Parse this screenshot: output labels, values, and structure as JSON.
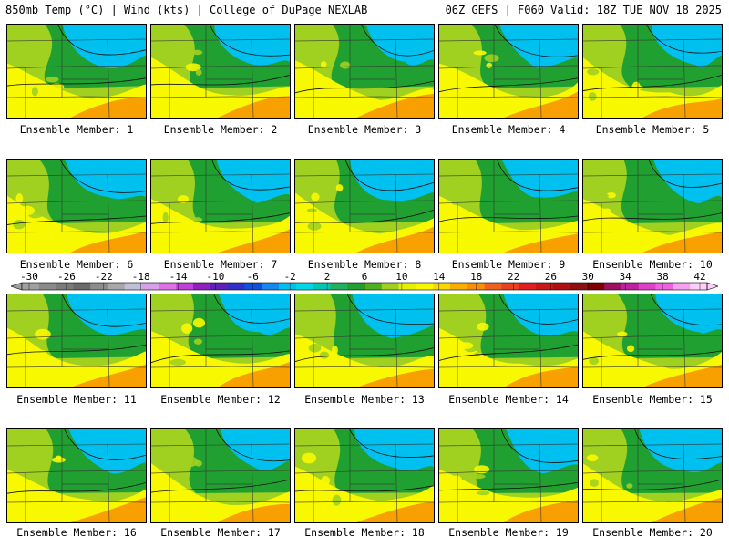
{
  "header": {
    "left": "850mb Temp (°C) | Wind (kts) | College of DuPage NEXLAB",
    "right": "06Z GEFS | F060 Valid: 18Z TUE NOV 18 2025"
  },
  "panels": [
    {
      "label": "Ensemble Member: 1"
    },
    {
      "label": "Ensemble Member: 2"
    },
    {
      "label": "Ensemble Member: 3"
    },
    {
      "label": "Ensemble Member: 4"
    },
    {
      "label": "Ensemble Member: 5"
    },
    {
      "label": "Ensemble Member: 6"
    },
    {
      "label": "Ensemble Member: 7"
    },
    {
      "label": "Ensemble Member: 8"
    },
    {
      "label": "Ensemble Member: 9"
    },
    {
      "label": "Ensemble Member: 10"
    },
    {
      "label": "Ensemble Member: 11"
    },
    {
      "label": "Ensemble Member: 12"
    },
    {
      "label": "Ensemble Member: 13"
    },
    {
      "label": "Ensemble Member: 14"
    },
    {
      "label": "Ensemble Member: 15"
    },
    {
      "label": "Ensemble Member: 16"
    },
    {
      "label": "Ensemble Member: 17"
    },
    {
      "label": "Ensemble Member: 18"
    },
    {
      "label": "Ensemble Member: 19"
    },
    {
      "label": "Ensemble Member: 20"
    }
  ],
  "colorbar": {
    "labels": [
      "-30",
      "-26",
      "-22",
      "-18",
      "-14",
      "-10",
      "-6",
      "-2",
      "2",
      "6",
      "10",
      "14",
      "18",
      "22",
      "26",
      "30",
      "34",
      "38",
      "42"
    ],
    "colors": [
      "#a0a0a0",
      "#8a8a8a",
      "#7a7a7a",
      "#6a6a6a",
      "#8c8c8c",
      "#a8a8a8",
      "#c0c0d8",
      "#d8a0e8",
      "#e070e8",
      "#c040d8",
      "#9020c0",
      "#6020b8",
      "#3030c8",
      "#1050e0",
      "#1488f0",
      "#00c0f0",
      "#00d8e8",
      "#00c8b0",
      "#20b060",
      "#20a030",
      "#50b020",
      "#a0d020",
      "#e8f000",
      "#f8f800",
      "#f8d800",
      "#f8b000",
      "#f89000",
      "#f06020",
      "#e84020",
      "#e02020",
      "#c81818",
      "#b01010",
      "#901010",
      "#800000",
      "#a01060",
      "#c020a0",
      "#e040c8",
      "#f060e0",
      "#f8a0f0",
      "#fcd0f8"
    ]
  },
  "colors": {
    "cold": "#00c0f0",
    "cool": "#20a030",
    "mild": "#a0d020",
    "warm": "#f8f800",
    "hot": "#f8a000"
  }
}
